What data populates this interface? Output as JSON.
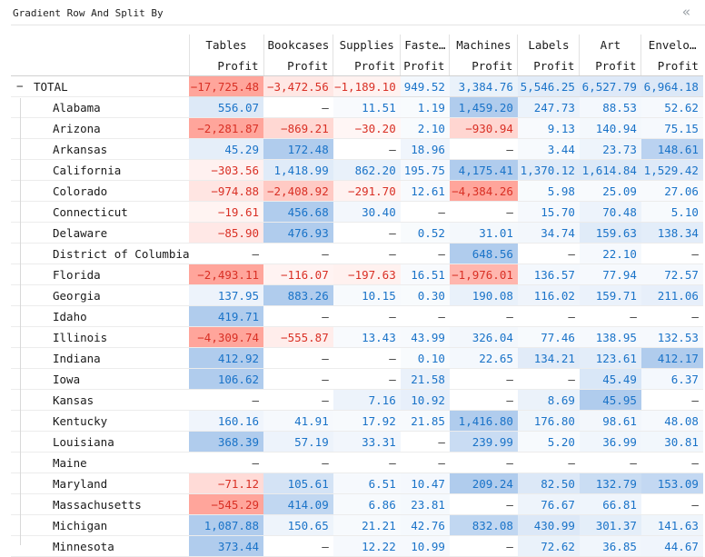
{
  "title": "Gradient Row And Split By",
  "collapse_icon": "«",
  "measure_label": "Profit",
  "columns": [
    "Tables",
    "Bookcases",
    "Supplies",
    "Fasteners",
    "Machines",
    "Labels",
    "Art",
    "Envelopes"
  ],
  "column_headers_display": [
    "Tables",
    "Bookcases",
    "Supplies",
    "Faste…",
    "Machines",
    "Labels",
    "Art",
    "Envelo…"
  ],
  "total": {
    "label": "TOTAL",
    "toggle": "−",
    "values": [
      "−17,725.48",
      "−3,472.56",
      "−1,189.10",
      "949.52",
      "3,384.76",
      "5,546.25",
      "6,527.79",
      "6,964.18"
    ]
  },
  "rows": [
    {
      "label": "Alabama",
      "values": [
        "556.07",
        "—",
        "11.51",
        "1.19",
        "1,459.20",
        "247.73",
        "88.53",
        "52.62"
      ]
    },
    {
      "label": "Arizona",
      "values": [
        "−2,281.87",
        "−869.21",
        "−30.20",
        "2.10",
        "−930.94",
        "9.13",
        "140.94",
        "75.15"
      ]
    },
    {
      "label": "Arkansas",
      "values": [
        "45.29",
        "172.48",
        "—",
        "18.96",
        "—",
        "3.44",
        "23.73",
        "148.61"
      ]
    },
    {
      "label": "California",
      "values": [
        "−303.56",
        "1,418.99",
        "862.20",
        "195.75",
        "4,175.41",
        "1,370.12",
        "1,614.84",
        "1,529.42"
      ]
    },
    {
      "label": "Colorado",
      "values": [
        "−974.88",
        "−2,408.92",
        "−291.70",
        "12.61",
        "−4,384.26",
        "5.98",
        "25.09",
        "27.06"
      ]
    },
    {
      "label": "Connecticut",
      "values": [
        "−19.61",
        "456.68",
        "30.40",
        "—",
        "—",
        "15.70",
        "70.48",
        "5.10"
      ]
    },
    {
      "label": "Delaware",
      "values": [
        "−85.90",
        "476.93",
        "—",
        "0.52",
        "31.01",
        "34.74",
        "159.63",
        "138.34"
      ]
    },
    {
      "label": "District of Columbia",
      "values": [
        "—",
        "—",
        "—",
        "—",
        "648.56",
        "—",
        "22.10",
        "—"
      ]
    },
    {
      "label": "Florida",
      "values": [
        "−2,493.11",
        "−116.07",
        "−197.63",
        "16.51",
        "−1,976.01",
        "136.57",
        "77.94",
        "72.57"
      ]
    },
    {
      "label": "Georgia",
      "values": [
        "137.95",
        "883.26",
        "10.15",
        "0.30",
        "190.08",
        "116.02",
        "159.71",
        "211.06"
      ]
    },
    {
      "label": "Idaho",
      "values": [
        "419.71",
        "—",
        "—",
        "—",
        "—",
        "—",
        "—",
        "—"
      ]
    },
    {
      "label": "Illinois",
      "values": [
        "−4,309.74",
        "−555.87",
        "13.43",
        "43.99",
        "326.04",
        "77.46",
        "138.95",
        "132.53"
      ]
    },
    {
      "label": "Indiana",
      "values": [
        "412.92",
        "—",
        "—",
        "0.10",
        "22.65",
        "134.21",
        "123.61",
        "412.17"
      ]
    },
    {
      "label": "Iowa",
      "values": [
        "106.62",
        "—",
        "—",
        "21.58",
        "—",
        "—",
        "45.49",
        "6.37"
      ]
    },
    {
      "label": "Kansas",
      "values": [
        "—",
        "—",
        "7.16",
        "10.92",
        "—",
        "8.69",
        "45.95",
        "—"
      ]
    },
    {
      "label": "Kentucky",
      "values": [
        "160.16",
        "41.91",
        "17.92",
        "21.85",
        "1,416.80",
        "176.80",
        "98.61",
        "48.08"
      ]
    },
    {
      "label": "Louisiana",
      "values": [
        "368.39",
        "57.19",
        "33.31",
        "—",
        "239.99",
        "5.20",
        "36.99",
        "30.81"
      ]
    },
    {
      "label": "Maine",
      "values": [
        "—",
        "—",
        "—",
        "—",
        "—",
        "—",
        "—",
        "—"
      ]
    },
    {
      "label": "Maryland",
      "values": [
        "−71.12",
        "105.61",
        "6.51",
        "10.47",
        "209.24",
        "82.50",
        "132.79",
        "153.09"
      ]
    },
    {
      "label": "Massachusetts",
      "values": [
        "−545.29",
        "414.09",
        "6.86",
        "23.81",
        "—",
        "76.67",
        "66.81",
        "—"
      ]
    },
    {
      "label": "Michigan",
      "values": [
        "1,087.88",
        "150.65",
        "21.21",
        "42.76",
        "832.08",
        "430.99",
        "301.37",
        "141.63"
      ]
    },
    {
      "label": "Minnesota",
      "values": [
        "373.44",
        "—",
        "12.22",
        "10.99",
        "—",
        "72.62",
        "36.85",
        "44.67"
      ]
    }
  ],
  "colors": {
    "positive_text": "#1a73c8",
    "negative_text": "#d93025",
    "positive_fill": "#aac8ec",
    "negative_fill": "#ff9e93"
  }
}
